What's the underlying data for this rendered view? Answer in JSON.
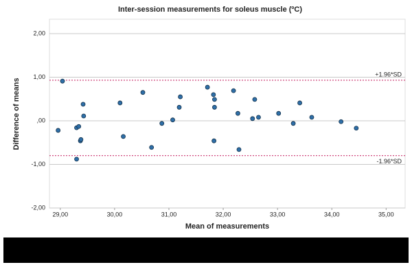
{
  "chart_data": {
    "type": "scatter",
    "title": "Inter-session measurements for soleus muscle (ºC)",
    "xlabel": "Mean of measurements",
    "ylabel": "Difference of means",
    "x": [
      28.96,
      29.04,
      29.3,
      29.34,
      29.37,
      29.38,
      29.3,
      29.42,
      29.43,
      30.1,
      30.16,
      30.52,
      30.68,
      30.87,
      31.07,
      31.19,
      31.21,
      31.71,
      31.82,
      31.84,
      31.83,
      31.84,
      32.19,
      32.27,
      32.29,
      32.54,
      32.58,
      32.65,
      33.02,
      33.29,
      33.41,
      33.63,
      34.17,
      34.45
    ],
    "values": [
      -0.22,
      0.91,
      -0.16,
      -0.13,
      -0.46,
      -0.43,
      -0.88,
      0.38,
      0.11,
      0.41,
      -0.36,
      0.65,
      -0.61,
      -0.06,
      0.02,
      0.31,
      0.55,
      0.77,
      0.6,
      0.49,
      -0.46,
      0.31,
      0.69,
      0.17,
      -0.66,
      0.05,
      0.49,
      0.08,
      0.17,
      -0.06,
      0.41,
      0.08,
      -0.02,
      -0.17
    ],
    "color": "#2f6fa8",
    "xlim": [
      28.8,
      35.35
    ],
    "ylim": [
      -2,
      2.33
    ],
    "xticks": [
      {
        "value": 29,
        "label": "29,00"
      },
      {
        "value": 30,
        "label": "30,00"
      },
      {
        "value": 31,
        "label": "31,00"
      },
      {
        "value": 32,
        "label": "32,00"
      },
      {
        "value": 33,
        "label": "33,00"
      },
      {
        "value": 34,
        "label": "34,00"
      },
      {
        "value": 35,
        "label": "35,00"
      }
    ],
    "yticks": [
      {
        "value": -2,
        "label": "-2,00"
      },
      {
        "value": -1,
        "label": "-1,00"
      },
      {
        "value": 0,
        "label": ",00"
      },
      {
        "value": 1,
        "label": "1,00"
      },
      {
        "value": 2,
        "label": "2,00"
      }
    ],
    "grid": true,
    "reference_lines": [
      {
        "label": "+1.96*SD",
        "value": 0.93,
        "color": "#c2185b"
      },
      {
        "label": "-1.96*SD",
        "value": -0.8,
        "color": "#c2185b"
      }
    ]
  }
}
